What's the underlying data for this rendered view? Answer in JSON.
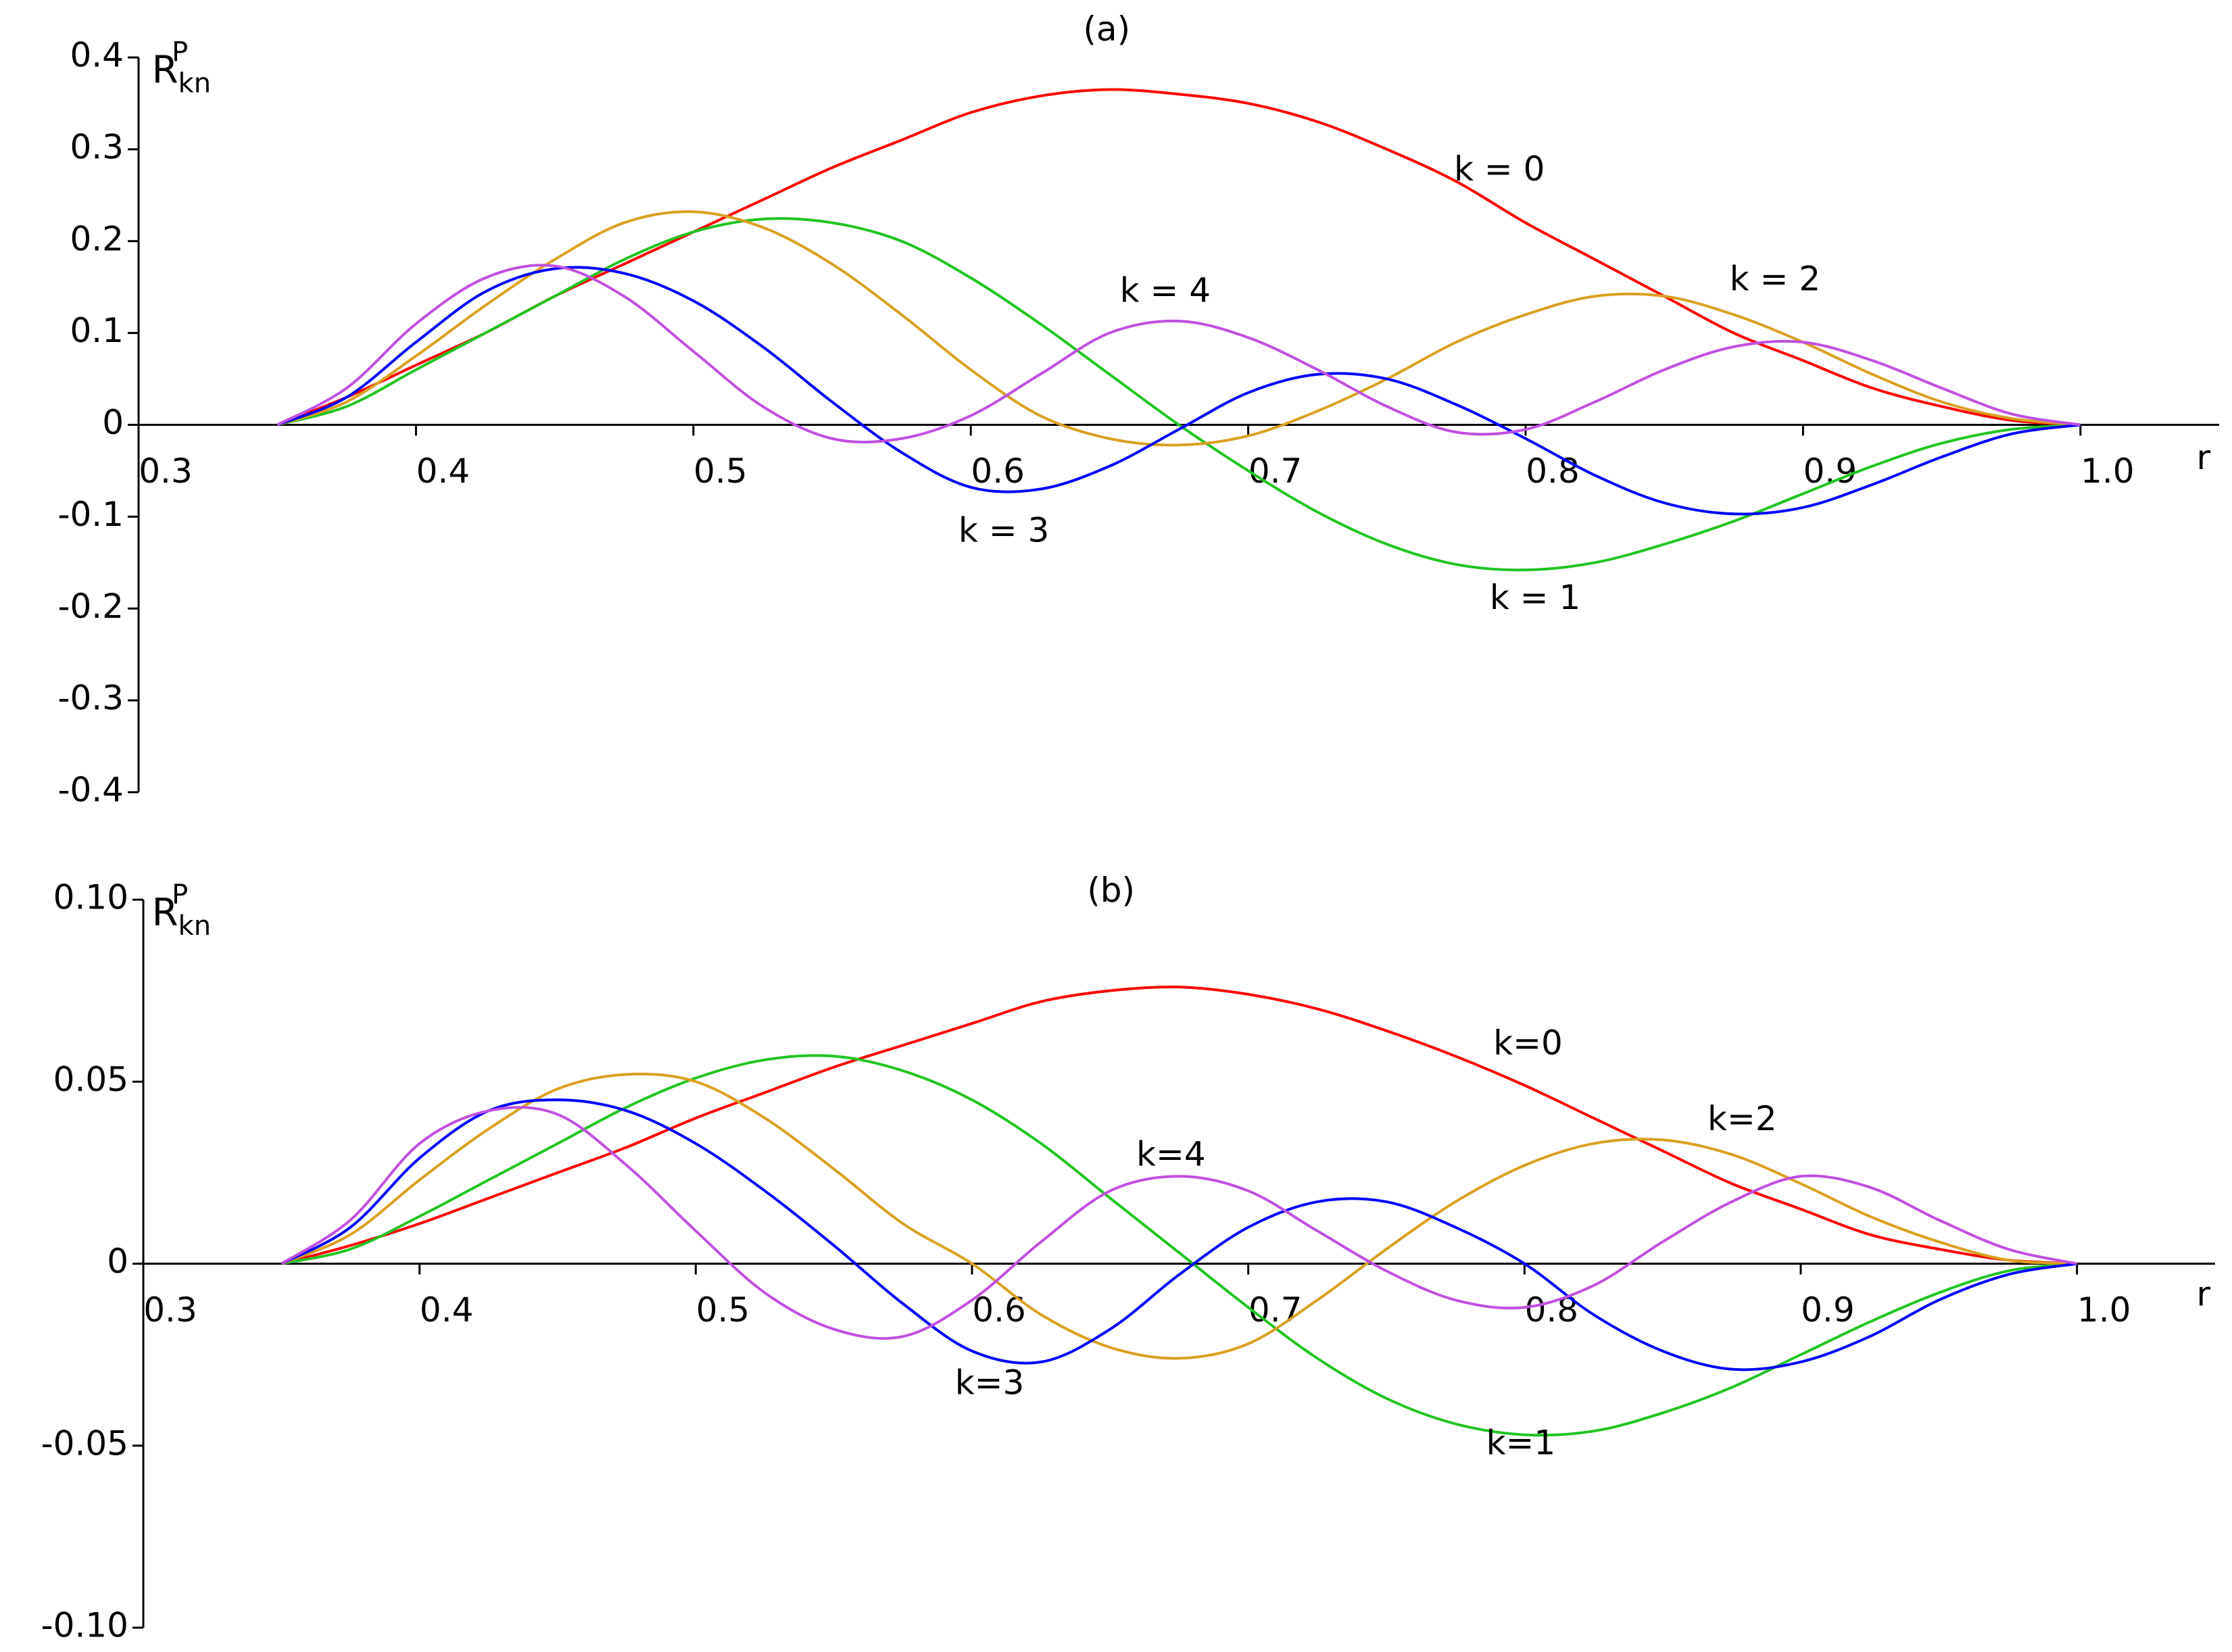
{
  "chart_data": [
    {
      "type": "line",
      "title": "(a)",
      "xlabel": "r",
      "ylabel": {
        "base": "R",
        "sub": "kn",
        "sup": "P"
      },
      "x": [
        0.35,
        0.375,
        0.4,
        0.425,
        0.45,
        0.475,
        0.5,
        0.525,
        0.55,
        0.575,
        0.6,
        0.625,
        0.65,
        0.675,
        0.7,
        0.725,
        0.75,
        0.775,
        0.8,
        0.825,
        0.85,
        0.875,
        0.9,
        0.925,
        0.95,
        0.975,
        1.0
      ],
      "xlim": [
        0.3,
        1.05
      ],
      "xticks": [
        0.3,
        0.4,
        0.5,
        0.6,
        0.7,
        0.8,
        0.9,
        {
          "value": 1.0,
          "label": "1.0"
        }
      ],
      "ylim": [
        -0.4,
        0.4
      ],
      "yticks": [
        -0.4,
        -0.3,
        -0.2,
        -0.1,
        0,
        0.1,
        0.2,
        0.3,
        0.4
      ],
      "series": [
        {
          "name": "k = 0",
          "color": "#ff0000",
          "values": [
            0,
            0.03,
            0.065,
            0.1,
            0.14,
            0.175,
            0.21,
            0.245,
            0.28,
            0.31,
            0.34,
            0.358,
            0.365,
            0.36,
            0.35,
            0.33,
            0.3,
            0.265,
            0.22,
            0.18,
            0.14,
            0.1,
            0.07,
            0.04,
            0.02,
            0.005,
            0
          ]
        },
        {
          "name": "k = 1",
          "color": "#22c322",
          "values": [
            0,
            0.02,
            0.06,
            0.1,
            0.14,
            0.18,
            0.21,
            0.224,
            0.22,
            0.2,
            0.16,
            0.11,
            0.055,
            0,
            -0.05,
            -0.095,
            -0.13,
            -0.152,
            -0.158,
            -0.15,
            -0.13,
            -0.105,
            -0.075,
            -0.045,
            -0.02,
            -0.005,
            0
          ]
        },
        {
          "name": "k = 2",
          "color": "#d9a020",
          "values": [
            0,
            0.025,
            0.075,
            0.13,
            0.18,
            0.22,
            0.232,
            0.215,
            0.175,
            0.12,
            0.06,
            0.01,
            -0.015,
            -0.022,
            -0.012,
            0.015,
            0.05,
            0.09,
            0.12,
            0.14,
            0.14,
            0.12,
            0.09,
            0.055,
            0.025,
            0.007,
            0
          ]
        },
        {
          "name": "k = 3",
          "color": "#0000ff",
          "values": [
            0,
            0.03,
            0.09,
            0.145,
            0.17,
            0.165,
            0.135,
            0.085,
            0.025,
            -0.03,
            -0.068,
            -0.07,
            -0.045,
            -0.005,
            0.035,
            0.055,
            0.05,
            0.022,
            -0.015,
            -0.055,
            -0.085,
            -0.097,
            -0.09,
            -0.065,
            -0.035,
            -0.01,
            0
          ]
        },
        {
          "name": "k = 4",
          "color": "#bf50df",
          "values": [
            0,
            0.04,
            0.11,
            0.16,
            0.173,
            0.14,
            0.08,
            0.02,
            -0.015,
            -0.015,
            0.01,
            0.055,
            0.1,
            0.113,
            0.095,
            0.06,
            0.02,
            -0.008,
            -0.005,
            0.025,
            0.06,
            0.085,
            0.09,
            0.07,
            0.04,
            0.012,
            0
          ]
        }
      ]
    },
    {
      "type": "line",
      "title": "(b)",
      "xlabel": "r",
      "ylabel": {
        "base": "R",
        "sub": "kn",
        "sup": "P"
      },
      "x": [
        0.35,
        0.375,
        0.4,
        0.425,
        0.45,
        0.475,
        0.5,
        0.525,
        0.55,
        0.575,
        0.6,
        0.625,
        0.65,
        0.675,
        0.7,
        0.725,
        0.75,
        0.775,
        0.8,
        0.825,
        0.85,
        0.875,
        0.9,
        0.925,
        0.95,
        0.975,
        1.0
      ],
      "xlim": [
        0.3,
        1.05
      ],
      "xticks": [
        0.3,
        0.4,
        0.5,
        0.6,
        0.7,
        0.8,
        0.9,
        {
          "value": 1.0,
          "label": "1.0"
        }
      ],
      "ylim": [
        -0.1,
        0.1
      ],
      "yticks": [
        {
          "value": -0.1,
          "label": "-0.10"
        },
        -0.05,
        0,
        0.05,
        {
          "value": 0.1,
          "label": "0.10"
        }
      ],
      "series": [
        {
          "name": "k=0",
          "color": "#ff0000",
          "values": [
            0,
            0.005,
            0.011,
            0.018,
            0.025,
            0.032,
            0.04,
            0.047,
            0.054,
            0.06,
            0.066,
            0.072,
            0.075,
            0.076,
            0.074,
            0.07,
            0.064,
            0.057,
            0.049,
            0.04,
            0.031,
            0.022,
            0.015,
            0.008,
            0.004,
            0.001,
            0
          ]
        },
        {
          "name": "k=1",
          "color": "#22c322",
          "values": [
            0,
            0.004,
            0.013,
            0.023,
            0.033,
            0.043,
            0.051,
            0.056,
            0.057,
            0.053,
            0.045,
            0.033,
            0.018,
            0.003,
            -0.012,
            -0.026,
            -0.037,
            -0.044,
            -0.047,
            -0.046,
            -0.041,
            -0.034,
            -0.025,
            -0.016,
            -0.008,
            -0.002,
            0
          ]
        },
        {
          "name": "k=2",
          "color": "#d9a020",
          "values": [
            0,
            0.008,
            0.023,
            0.037,
            0.048,
            0.052,
            0.05,
            0.04,
            0.026,
            0.011,
            0,
            -0.014,
            -0.023,
            -0.026,
            -0.022,
            -0.01,
            0.004,
            0.017,
            0.027,
            0.033,
            0.034,
            0.03,
            0.022,
            0.013,
            0.006,
            0.001,
            0
          ]
        },
        {
          "name": "k=3",
          "color": "#0000ff",
          "values": [
            0,
            0.01,
            0.029,
            0.042,
            0.045,
            0.042,
            0.033,
            0.02,
            0.005,
            -0.011,
            -0.024,
            -0.027,
            -0.018,
            -0.003,
            0.01,
            0.017,
            0.017,
            0.01,
            0,
            -0.014,
            -0.024,
            -0.029,
            -0.027,
            -0.02,
            -0.01,
            -0.003,
            0
          ]
        },
        {
          "name": "k=4",
          "color": "#bf50df",
          "values": [
            0,
            0.012,
            0.033,
            0.042,
            0.041,
            0.027,
            0.009,
            -0.008,
            -0.018,
            -0.02,
            -0.01,
            0.006,
            0.02,
            0.024,
            0.02,
            0.009,
            -0.002,
            -0.01,
            -0.012,
            -0.006,
            0.006,
            0.017,
            0.024,
            0.021,
            0.012,
            0.004,
            0
          ]
        }
      ]
    }
  ]
}
